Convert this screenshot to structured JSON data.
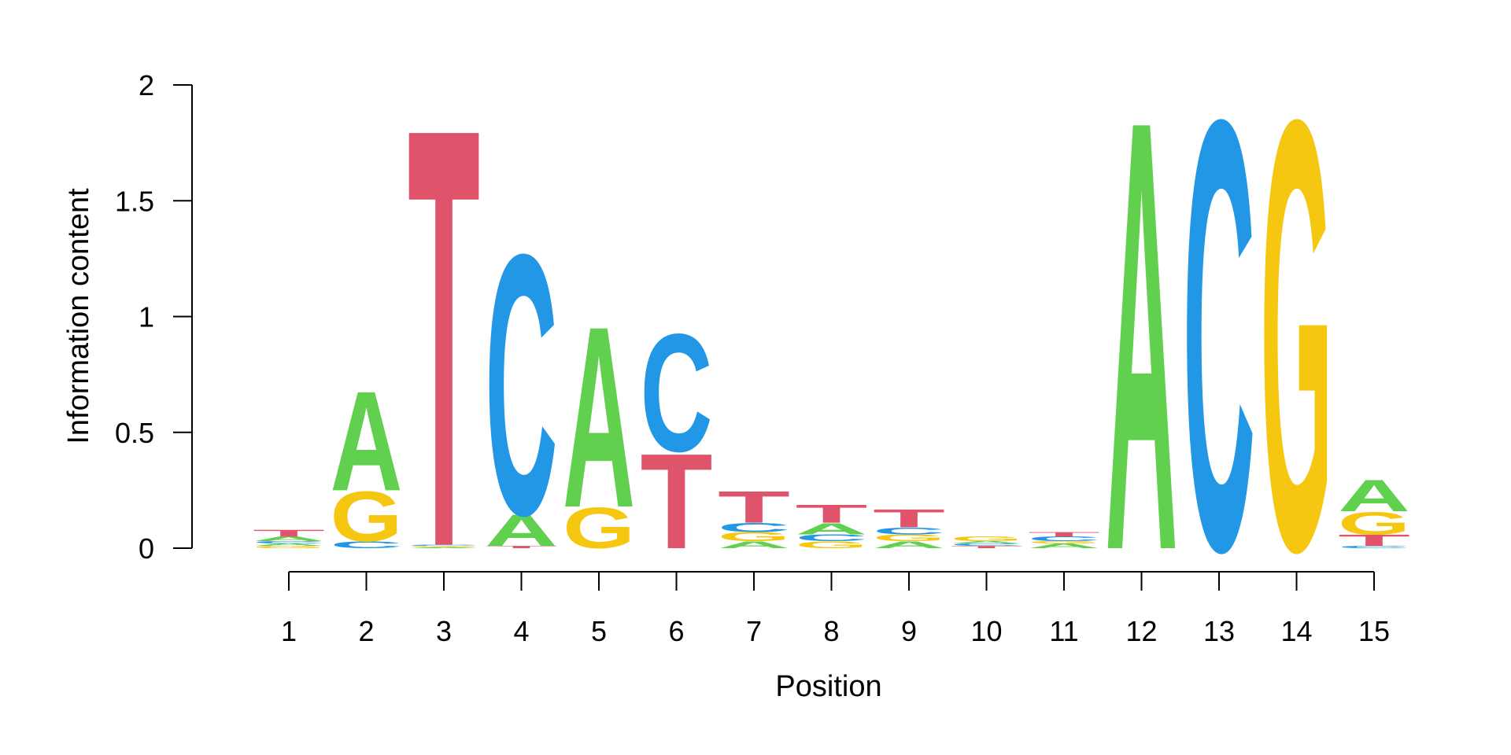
{
  "chart_data": {
    "type": "sequence-logo",
    "title": "",
    "xlabel": "Position",
    "ylabel": "Information content",
    "ylim": [
      0,
      2
    ],
    "yticks": [
      0,
      0.5,
      1,
      1.5,
      2
    ],
    "ytick_labels": [
      "0",
      "0.5",
      "1",
      "1.5",
      "2"
    ],
    "positions": [
      1,
      2,
      3,
      4,
      5,
      6,
      7,
      8,
      9,
      10,
      11,
      12,
      13,
      14,
      15
    ],
    "position_labels": [
      "1",
      "2",
      "3",
      "4",
      "5",
      "6",
      "7",
      "8",
      "9",
      "10",
      "11",
      "12",
      "13",
      "14",
      "15"
    ],
    "grid": false,
    "legend": "none",
    "colors": {
      "A": "#61d04f",
      "C": "#2297e6",
      "G": "#f5c710",
      "T": "#df536b"
    },
    "stacks": [
      [
        [
          "G",
          0.01
        ],
        [
          "A",
          0.01
        ],
        [
          "C",
          0.01
        ],
        [
          "A",
          0.02
        ],
        [
          "T",
          0.03
        ]
      ],
      [
        [
          "C",
          0.03
        ],
        [
          "G",
          0.22
        ],
        [
          "A",
          0.44
        ]
      ],
      [
        [
          "A",
          0.005
        ],
        [
          "G",
          0.005
        ],
        [
          "C",
          0.005
        ],
        [
          "T",
          1.85
        ]
      ],
      [
        [
          "T",
          0.01
        ],
        [
          "A",
          0.14
        ],
        [
          "C",
          1.15
        ]
      ],
      [
        [
          "G",
          0.18
        ],
        [
          "A",
          0.8
        ]
      ],
      [
        [
          "T",
          0.42
        ],
        [
          "C",
          0.52
        ]
      ],
      [
        [
          "A",
          0.03
        ],
        [
          "G",
          0.04
        ],
        [
          "C",
          0.04
        ],
        [
          "T",
          0.14
        ]
      ],
      [
        [
          "G",
          0.03
        ],
        [
          "C",
          0.03
        ],
        [
          "A",
          0.05
        ],
        [
          "T",
          0.08
        ]
      ],
      [
        [
          "A",
          0.03
        ],
        [
          "G",
          0.03
        ],
        [
          "C",
          0.03
        ],
        [
          "T",
          0.08
        ]
      ],
      [
        [
          "T",
          0.01
        ],
        [
          "C",
          0.01
        ],
        [
          "A",
          0.01
        ],
        [
          "G",
          0.02
        ]
      ],
      [
        [
          "A",
          0.02
        ],
        [
          "G",
          0.01
        ],
        [
          "C",
          0.02
        ],
        [
          "T",
          0.02
        ]
      ],
      [
        [
          "A",
          1.9
        ]
      ],
      [
        [
          "C",
          1.9
        ]
      ],
      [
        [
          "G",
          1.9
        ]
      ],
      [
        [
          "C",
          0.01
        ],
        [
          "T",
          0.05
        ],
        [
          "G",
          0.1
        ],
        [
          "A",
          0.14
        ]
      ]
    ]
  }
}
